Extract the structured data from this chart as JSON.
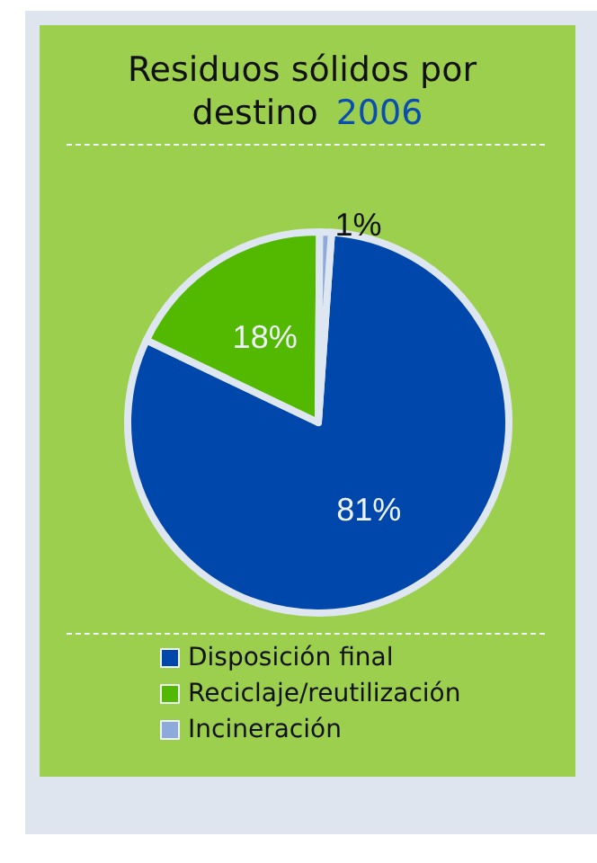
{
  "chart_data": {
    "type": "pie",
    "title": "Residuos sólidos por destino 2006",
    "categories": [
      "Disposición final",
      "Reciclaje/reutilización",
      "Incineración"
    ],
    "values": [
      81,
      18,
      1
    ],
    "colors": [
      "#0047ab",
      "#52b800",
      "#8eaadb"
    ],
    "value_labels": [
      "81%",
      "18%",
      "1%"
    ],
    "legend": "bottom"
  }
}
